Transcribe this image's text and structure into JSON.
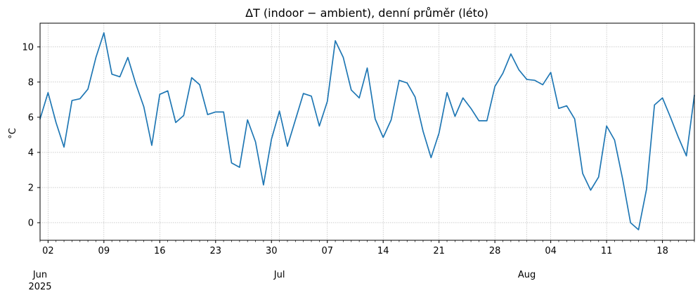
{
  "chart_data": {
    "type": "line",
    "title": "ΔT (indoor − ambient), denní průměr (léto)",
    "xlabel": "",
    "ylabel": "°C",
    "x_start": "2025-06-01",
    "x_end": "2025-08-22",
    "ylim": [
      -1.0,
      11.35
    ],
    "grid": true,
    "y_ticks": [
      0,
      2,
      4,
      6,
      8,
      10
    ],
    "y_tick_labels": [
      "0",
      "2",
      "4",
      "6",
      "8",
      "10"
    ],
    "x_day_ticks": [
      {
        "date": "2025-06-02",
        "label": "02"
      },
      {
        "date": "2025-06-09",
        "label": "09"
      },
      {
        "date": "2025-06-16",
        "label": "16"
      },
      {
        "date": "2025-06-23",
        "label": "23"
      },
      {
        "date": "2025-06-30",
        "label": "30"
      },
      {
        "date": "2025-07-07",
        "label": "07"
      },
      {
        "date": "2025-07-14",
        "label": "14"
      },
      {
        "date": "2025-07-21",
        "label": "21"
      },
      {
        "date": "2025-07-28",
        "label": "28"
      },
      {
        "date": "2025-08-04",
        "label": "04"
      },
      {
        "date": "2025-08-11",
        "label": "11"
      },
      {
        "date": "2025-08-18",
        "label": "18"
      }
    ],
    "x_month_ticks": [
      {
        "date": "2025-06-01",
        "label": "Jun",
        "year": "2025"
      },
      {
        "date": "2025-07-01",
        "label": "Jul",
        "year": ""
      },
      {
        "date": "2025-08-01",
        "label": "Aug",
        "year": ""
      }
    ],
    "series": [
      {
        "color": "#1f77b4",
        "values": [
          5.9,
          7.4,
          5.7,
          4.3,
          6.95,
          7.05,
          7.6,
          9.4,
          10.8,
          8.45,
          8.3,
          9.4,
          7.9,
          6.6,
          4.4,
          7.3,
          7.5,
          5.7,
          6.1,
          8.25,
          7.85,
          6.15,
          6.3,
          6.3,
          3.4,
          3.15,
          5.85,
          4.6,
          2.15,
          4.75,
          6.35,
          4.35,
          5.85,
          7.35,
          7.2,
          5.5,
          6.9,
          10.35,
          9.4,
          7.55,
          7.1,
          8.8,
          5.9,
          4.85,
          5.85,
          8.1,
          7.95,
          7.15,
          5.2,
          3.7,
          5.1,
          7.4,
          6.05,
          7.1,
          6.5,
          5.8,
          5.8,
          7.75,
          8.5,
          9.6,
          8.7,
          8.15,
          8.1,
          7.85,
          8.55,
          6.5,
          6.65,
          5.9,
          2.8,
          1.85,
          2.6,
          5.5,
          4.7,
          2.5,
          0.0,
          -0.4,
          1.9,
          6.7,
          7.1,
          6.0,
          4.85,
          3.8,
          7.25
        ]
      }
    ]
  }
}
